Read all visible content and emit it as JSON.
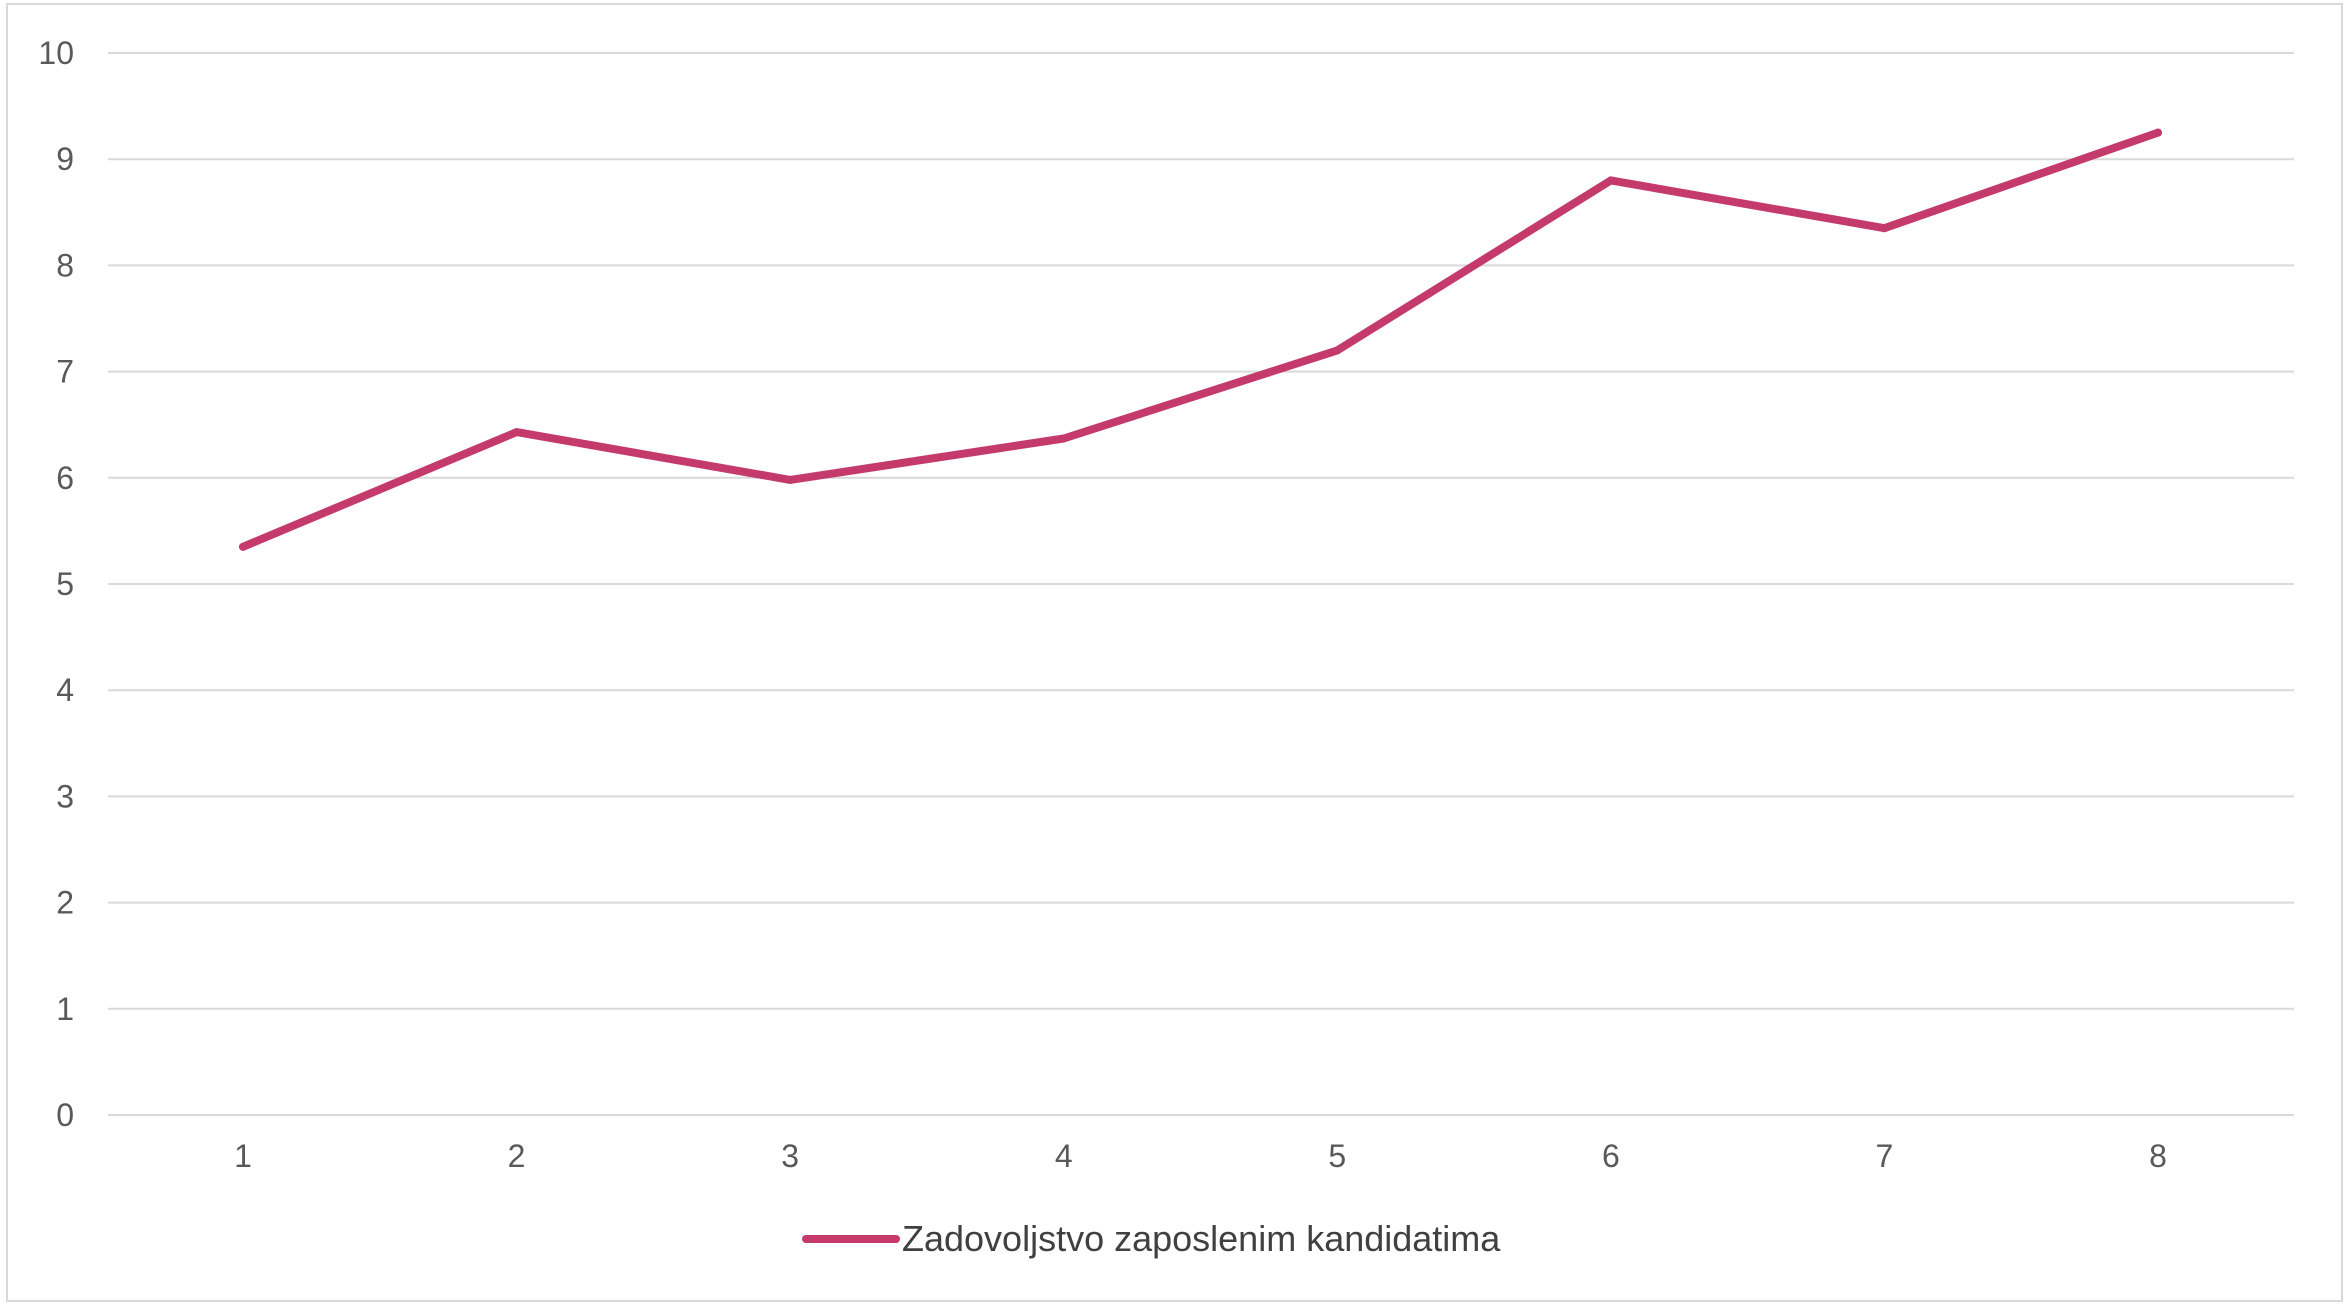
{
  "chart_data": {
    "type": "line",
    "title": "",
    "xlabel": "",
    "ylabel": "",
    "x": [
      1,
      2,
      3,
      4,
      5,
      6,
      7,
      8
    ],
    "x_tick_labels": [
      "1",
      "2",
      "3",
      "4",
      "5",
      "6",
      "7",
      "8"
    ],
    "ylim": [
      0,
      10
    ],
    "y_ticks": [
      0,
      1,
      2,
      3,
      4,
      5,
      6,
      7,
      8,
      9,
      10
    ],
    "y_tick_labels": [
      "0",
      "1",
      "2",
      "3",
      "4",
      "5",
      "6",
      "7",
      "8",
      "9",
      "10"
    ],
    "grid": "horizontal",
    "legend": "bottom-center",
    "series": [
      {
        "name": "Zadovoljstvo zaposlenim kandidatima",
        "color": "#c43b6b",
        "values": [
          5.35,
          6.43,
          5.98,
          6.37,
          7.2,
          8.8,
          8.35,
          9.25
        ]
      }
    ]
  }
}
